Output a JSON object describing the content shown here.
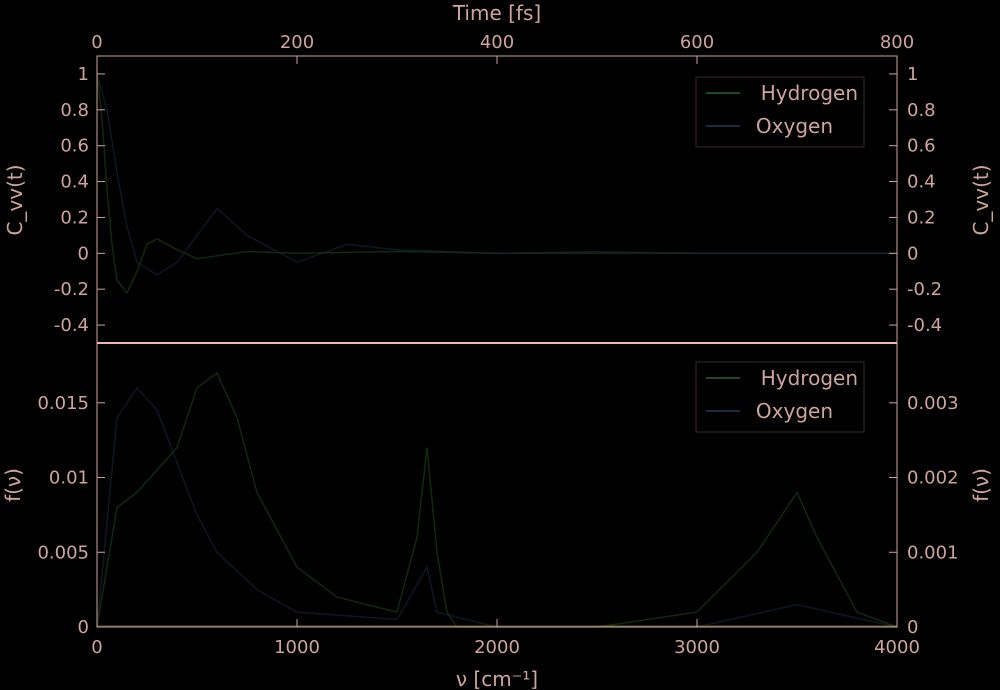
{
  "colors": {
    "background": "#000000",
    "axis": "#cfa49c",
    "separator": "#f2b3b0",
    "hydrogen": "#1f4a1f",
    "oxygen": "#1a2a44",
    "baseline": "#9a9a20"
  },
  "chart_data": [
    {
      "type": "line",
      "panel": "top",
      "xlabel": "Time [fs]",
      "ylabel_left": "C_vv(t)",
      "ylabel_right": "C_vv(t)",
      "xlim": [
        0,
        800
      ],
      "ylim": [
        -0.5,
        1.1
      ],
      "x_ticks": [
        "0",
        "200",
        "400",
        "600",
        "800"
      ],
      "y_ticks": [
        "-0.4",
        "-0.2",
        "0",
        "0.2",
        "0.4",
        "0.6",
        "0.8",
        "1"
      ],
      "y_ticks_right": [
        "-0.4",
        "-0.2",
        "0",
        "0.2",
        "0.4",
        "0.6",
        "0.8",
        "1"
      ],
      "legend": {
        "entries": [
          "Hydrogen",
          "Oxygen"
        ],
        "position": "top-right"
      },
      "series": [
        {
          "name": "Hydrogen",
          "x": [
            0,
            5,
            10,
            15,
            20,
            30,
            40,
            50,
            60,
            80,
            100,
            150,
            200,
            300,
            400,
            500,
            600,
            700,
            800
          ],
          "y": [
            1.0,
            0.75,
            0.35,
            0.05,
            -0.15,
            -0.22,
            -0.1,
            0.05,
            0.08,
            0.02,
            -0.03,
            0.01,
            0.0,
            0.01,
            0.0,
            0.0,
            0.0,
            0.0,
            0.0
          ]
        },
        {
          "name": "Oxygen",
          "x": [
            0,
            10,
            20,
            30,
            40,
            60,
            80,
            100,
            120,
            150,
            200,
            250,
            300,
            400,
            500,
            600,
            700,
            800
          ],
          "y": [
            1.0,
            0.8,
            0.45,
            0.15,
            -0.05,
            -0.12,
            -0.05,
            0.1,
            0.25,
            0.1,
            -0.05,
            0.05,
            0.02,
            0.0,
            0.01,
            0.0,
            0.0,
            0.0
          ]
        }
      ]
    },
    {
      "type": "line",
      "panel": "bottom",
      "xlabel": "ν [cm⁻¹]",
      "ylabel_left": "f(ν)",
      "ylabel_right": "f(ν)",
      "xlim": [
        0,
        4000
      ],
      "ylim": [
        0,
        0.019
      ],
      "ylim_right": [
        0,
        0.0038
      ],
      "x_ticks": [
        "0",
        "1000",
        "2000",
        "3000",
        "4000"
      ],
      "y_ticks": [
        "0",
        "0.005",
        "0.01",
        "0.015"
      ],
      "y_ticks_right": [
        "0",
        "0.001",
        "0.002",
        "0.003"
      ],
      "legend": {
        "entries": [
          "Hydrogen",
          "Oxygen"
        ],
        "position": "top-right"
      },
      "series": [
        {
          "name": "Hydrogen",
          "x": [
            0,
            100,
            200,
            400,
            500,
            600,
            700,
            800,
            1000,
            1200,
            1500,
            1600,
            1650,
            1700,
            1750,
            1800,
            2000,
            2500,
            3000,
            3300,
            3500,
            3600,
            3800,
            4000
          ],
          "y": [
            0.0,
            0.008,
            0.009,
            0.012,
            0.016,
            0.017,
            0.014,
            0.009,
            0.004,
            0.002,
            0.001,
            0.006,
            0.012,
            0.005,
            0.001,
            0.0,
            0.0,
            0.0,
            0.001,
            0.005,
            0.009,
            0.006,
            0.001,
            0.0
          ]
        },
        {
          "name": "Oxygen",
          "x": [
            0,
            100,
            200,
            300,
            400,
            500,
            600,
            800,
            1000,
            1500,
            1650,
            1700,
            2000,
            3000,
            3500,
            4000
          ],
          "y": [
            0.0,
            0.0028,
            0.0032,
            0.0029,
            0.0022,
            0.0015,
            0.001,
            0.0005,
            0.0002,
            0.0001,
            0.0008,
            0.0002,
            0.0,
            0.0,
            0.0003,
            0.0
          ]
        }
      ]
    }
  ]
}
